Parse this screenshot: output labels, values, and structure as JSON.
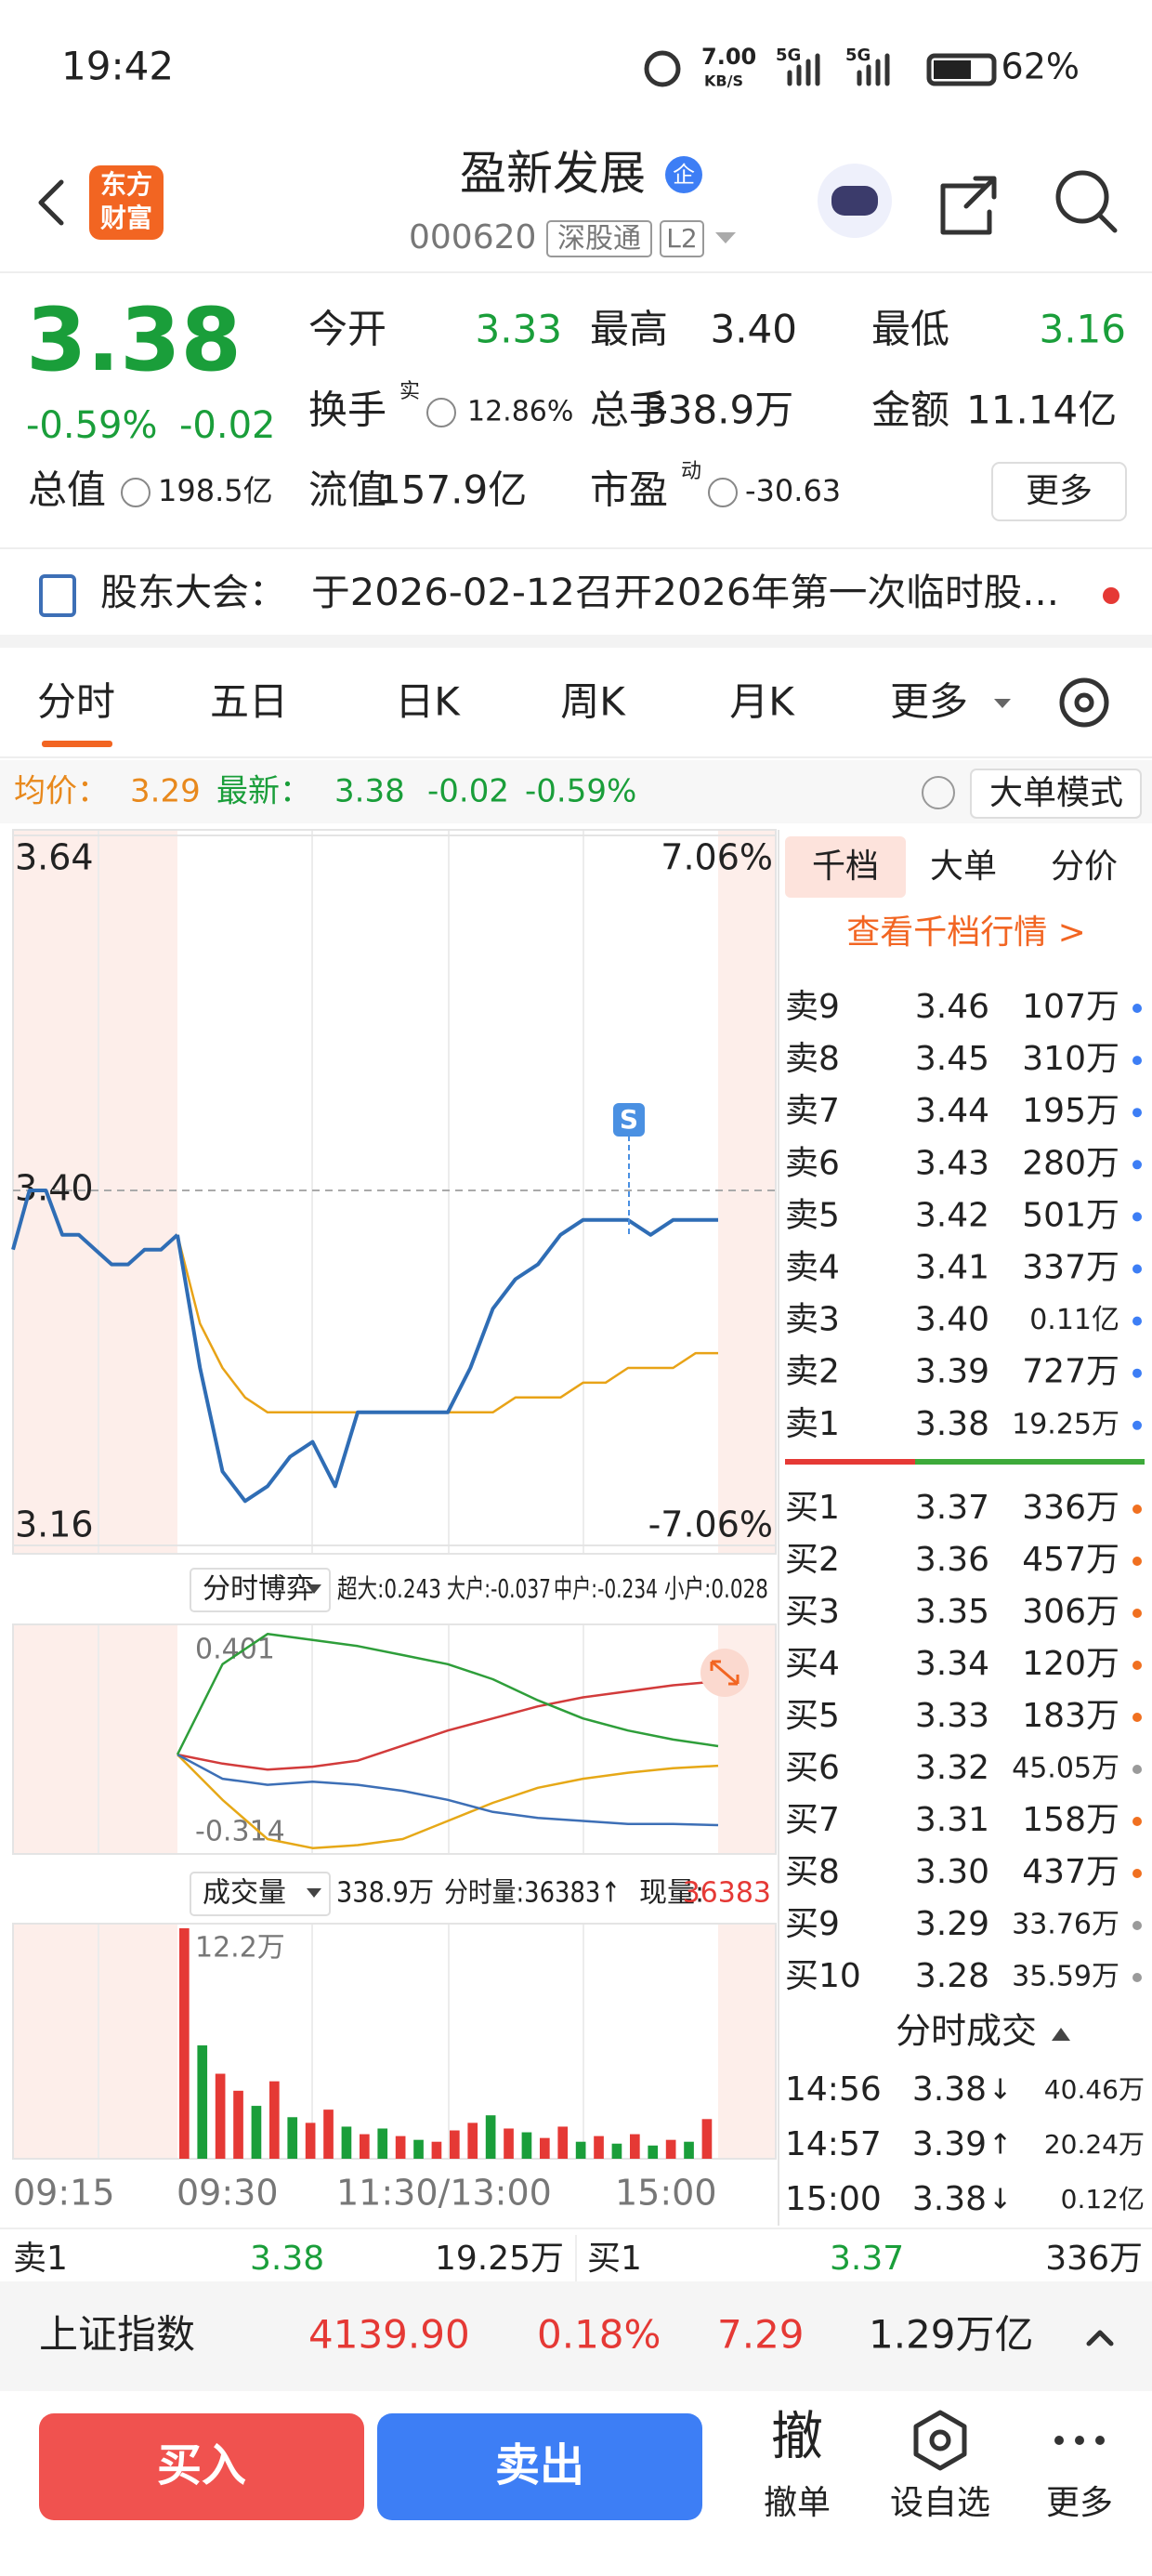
{
  "status_bar": {
    "time": "19:42",
    "speed": "7.00",
    "speed_unit": "KB/S",
    "signal_1": "5G",
    "signal_2": "5G",
    "battery": "62%"
  },
  "header": {
    "logo_top": "东方",
    "logo_bottom": "财富",
    "title": "盈新发展",
    "badge": "企",
    "code": "000620",
    "tag_1": "深股通",
    "tag_2": "L2"
  },
  "quote": {
    "last": "3.38",
    "change_pct": "-0.59%",
    "change": "-0.02",
    "open_label": "今开",
    "open": "3.33",
    "high_label": "最高",
    "high": "3.40",
    "low_label": "最低",
    "low": "3.16",
    "turnover_label": "换手",
    "turnover_tag": "实",
    "turnover": "12.86%",
    "volume_label": "总手",
    "volume": "338.9万",
    "amount_label": "金额",
    "amount": "11.14亿",
    "mkt_cap_label": "总值",
    "mkt_cap": "198.5亿",
    "float_cap_label": "流值",
    "float_cap": "157.9亿",
    "pe_label": "市盈",
    "pe_tag": "动",
    "pe": "-30.63",
    "more": "更多"
  },
  "notice": {
    "label": "股东大会：",
    "text": "于2026-02-12召开2026年第一次临时股..."
  },
  "tabs": [
    "分时",
    "五日",
    "日K",
    "周K",
    "月K",
    "更多"
  ],
  "info": {
    "avg_label": "均价：",
    "avg": "3.29",
    "last_label": "最新：",
    "last": "3.38",
    "change": "-0.02",
    "change_pct": "-0.59%",
    "mode": "大单模式"
  },
  "intraday": {
    "ylim": [
      3.16,
      3.64
    ],
    "yticks": [
      3.64,
      {
        "value": 3.4,
        "label": "3.40"
      },
      3.16
    ],
    "y2lim": [
      -7.06,
      7.06
    ],
    "y2ticks": [
      {
        "value": 7.06,
        "label": "7.06%"
      },
      {
        "value": -7.06,
        "label": "-7.06%"
      }
    ],
    "signal": "S",
    "premarket": {
      "color": "#2f6db5",
      "values": [
        3.36,
        3.4,
        3.4,
        3.37,
        3.37,
        3.36,
        3.35,
        3.35,
        3.36,
        3.36,
        3.37
      ]
    },
    "price": {
      "color": "#2f6db5",
      "values": [
        3.37,
        3.28,
        3.21,
        3.19,
        3.2,
        3.22,
        3.23,
        3.2,
        3.25,
        3.25,
        3.25,
        3.25,
        3.25,
        3.28,
        3.32,
        3.34,
        3.35,
        3.37,
        3.38,
        3.38,
        3.38,
        3.37,
        3.38,
        3.38,
        3.38
      ]
    },
    "avg": {
      "color": "#e8a317",
      "values": [
        3.37,
        3.31,
        3.28,
        3.26,
        3.25,
        3.25,
        3.25,
        3.25,
        3.25,
        3.25,
        3.25,
        3.25,
        3.25,
        3.25,
        3.25,
        3.26,
        3.26,
        3.26,
        3.27,
        3.27,
        3.28,
        3.28,
        3.28,
        3.29,
        3.29
      ]
    }
  },
  "panel": {
    "tabs": [
      "千档",
      "大单",
      "分价"
    ],
    "link": "查看千档行情 >"
  },
  "order_book": {
    "asks": [
      {
        "label": "卖9",
        "price": "3.46",
        "volume": "107万",
        "color": "#e53935",
        "dot": "#3d7ef5"
      },
      {
        "label": "卖8",
        "price": "3.45",
        "volume": "310万",
        "color": "#e53935",
        "dot": "#3d7ef5"
      },
      {
        "label": "卖7",
        "price": "3.44",
        "volume": "195万",
        "color": "#e53935",
        "dot": "#3d7ef5"
      },
      {
        "label": "卖6",
        "price": "3.43",
        "volume": "280万",
        "color": "#e53935",
        "dot": "#3d7ef5"
      },
      {
        "label": "卖5",
        "price": "3.42",
        "volume": "501万",
        "color": "#e53935",
        "dot": "#3d7ef5"
      },
      {
        "label": "卖4",
        "price": "3.41",
        "volume": "337万",
        "color": "#e53935",
        "dot": "#3d7ef5"
      },
      {
        "label": "卖3",
        "price": "3.40",
        "volume": "0.11亿",
        "color": "#222222",
        "dot": "#3d7ef5"
      },
      {
        "label": "卖2",
        "price": "3.39",
        "volume": "727万",
        "color": "#1a9e3a",
        "dot": "#3d7ef5"
      },
      {
        "label": "卖1",
        "price": "3.38",
        "volume": "19.25万",
        "color": "#1a9e3a",
        "dot": "#3d7ef5"
      }
    ],
    "bids": [
      {
        "label": "买1",
        "price": "3.37",
        "volume": "336万",
        "color": "#1a9e3a",
        "dot": "#f07020"
      },
      {
        "label": "买2",
        "price": "3.36",
        "volume": "457万",
        "color": "#1a9e3a",
        "dot": "#f07020"
      },
      {
        "label": "买3",
        "price": "3.35",
        "volume": "306万",
        "color": "#1a9e3a",
        "dot": "#f07020"
      },
      {
        "label": "买4",
        "price": "3.34",
        "volume": "120万",
        "color": "#1a9e3a",
        "dot": "#f07020"
      },
      {
        "label": "买5",
        "price": "3.33",
        "volume": "183万",
        "color": "#1a9e3a",
        "dot": "#f07020"
      },
      {
        "label": "买6",
        "price": "3.32",
        "volume": "45.05万",
        "color": "#1a9e3a",
        "dot": "#9a9a9a"
      },
      {
        "label": "买7",
        "price": "3.31",
        "volume": "158万",
        "color": "#1a9e3a",
        "dot": "#f07020"
      },
      {
        "label": "买8",
        "price": "3.30",
        "volume": "437万",
        "color": "#1a9e3a",
        "dot": "#f07020"
      },
      {
        "label": "买9",
        "price": "3.29",
        "volume": "33.76万",
        "color": "#1a9e3a",
        "dot": "#9a9a9a"
      },
      {
        "label": "买10",
        "price": "3.28",
        "volume": "35.59万",
        "color": "#1a9e3a",
        "dot": "#9a9a9a"
      }
    ]
  },
  "trades": {
    "title": "分时成交",
    "rows": [
      {
        "time": "14:56",
        "price": "3.38",
        "arrow": "↓",
        "volume": "40.46万",
        "color": "#1a9e3a",
        "arrow_color": "#1a9e3a"
      },
      {
        "time": "14:57",
        "price": "3.39",
        "arrow": "↑",
        "volume": "20.24万",
        "color": "#1a9e3a",
        "arrow_color": "#e53935"
      },
      {
        "time": "15:00",
        "price": "3.38",
        "arrow": "↓",
        "volume": "0.12亿",
        "color": "#1a9e3a",
        "arrow_color": "#1a9e3a"
      }
    ]
  },
  "game": {
    "title": "分时博弈",
    "legend": [
      "超大:0.243",
      "大户:-0.037",
      "中户:-0.234",
      "小户:0.028"
    ],
    "ylim": [
      -0.314,
      0.401
    ],
    "yticks": [
      0.401,
      -0.314
    ],
    "series": [
      {
        "color": "#d23b3b",
        "values": [
          0,
          -0.03,
          -0.05,
          -0.04,
          -0.02,
          0.03,
          0.08,
          0.12,
          0.16,
          0.19,
          0.21,
          0.23,
          0.243
        ]
      },
      {
        "color": "#e6a817",
        "values": [
          0,
          -0.15,
          -0.28,
          -0.31,
          -0.3,
          -0.28,
          -0.22,
          -0.16,
          -0.11,
          -0.08,
          -0.06,
          -0.045,
          -0.037
        ]
      },
      {
        "color": "#3d6fb6",
        "values": [
          0,
          -0.08,
          -0.1,
          -0.09,
          -0.1,
          -0.12,
          -0.15,
          -0.19,
          -0.21,
          -0.22,
          -0.23,
          -0.23,
          -0.234
        ]
      },
      {
        "color": "#2e9e3a",
        "values": [
          0,
          0.3,
          0.4,
          0.38,
          0.36,
          0.33,
          0.3,
          0.25,
          0.18,
          0.12,
          0.08,
          0.05,
          0.028
        ]
      }
    ]
  },
  "volume": {
    "title": "成交量",
    "total": "338.9万",
    "tick_volume": "分时量:36383↑",
    "now_label": "现量:",
    "now": "36383",
    "ylim": [
      0,
      12.2
    ],
    "yticks": [
      {
        "value": 12.2,
        "label": "12.2万"
      }
    ],
    "values": [
      12.2,
      6.0,
      4.5,
      3.6,
      2.8,
      4.1,
      2.2,
      1.9,
      2.6,
      1.7,
      1.3,
      1.6,
      1.2,
      1.0,
      0.9,
      1.5,
      1.9,
      2.3,
      1.6,
      1.4,
      1.1,
      1.7,
      0.9,
      1.2,
      0.8,
      1.3,
      0.7,
      1.0,
      0.9,
      2.1
    ],
    "colors": [
      "#e53935",
      "#1a9e3a",
      "#e53935",
      "#e53935",
      "#1a9e3a",
      "#e53935",
      "#1a9e3a",
      "#e53935",
      "#e53935",
      "#1a9e3a",
      "#e53935",
      "#1a9e3a",
      "#e53935",
      "#1a9e3a",
      "#e53935",
      "#e53935",
      "#e53935",
      "#1a9e3a",
      "#e53935",
      "#1a9e3a",
      "#e53935",
      "#e53935",
      "#1a9e3a",
      "#e53935",
      "#1a9e3a",
      "#e53935",
      "#1a9e3a",
      "#e53935",
      "#1a9e3a",
      "#e53935"
    ]
  },
  "time_axis": [
    "09:15",
    "09:30",
    "11:30/13:00",
    "15:00"
  ],
  "bottom_quote": {
    "ask_label": "卖1",
    "ask_price": "3.38",
    "ask_volume": "19.25万",
    "bid_label": "买1",
    "bid_price": "3.37",
    "bid_volume": "336万"
  },
  "index": {
    "name": "上证指数",
    "value": "4139.90",
    "change_pct": "0.18%",
    "change": "7.29",
    "amount": "1.29万亿"
  },
  "actions": {
    "buy": "买入",
    "sell": "卖出",
    "cancel_icon": "撤",
    "cancel": "撤单",
    "watch": "设自选",
    "more": "更多"
  }
}
